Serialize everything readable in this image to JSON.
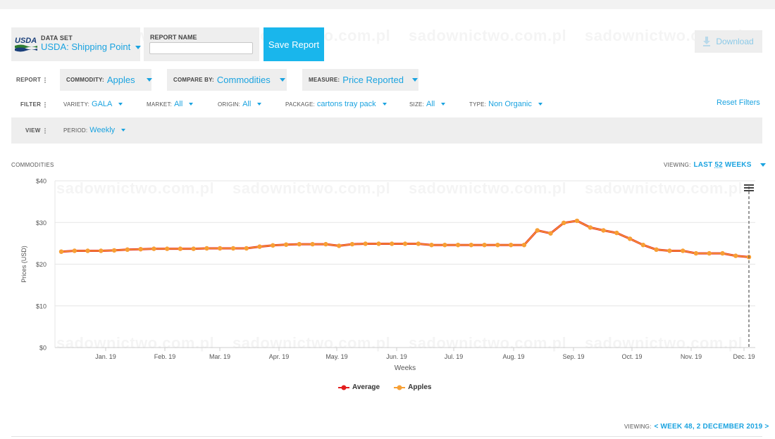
{
  "dataset": {
    "logo_text": "USDA",
    "label": "DATA SET",
    "value": "USDA: Shipping Point"
  },
  "report_name": {
    "label": "REPORT NAME",
    "value": "",
    "placeholder": ""
  },
  "save_button": "Save Report",
  "download_button": "Download",
  "report_row": {
    "label": "REPORT",
    "commodity": {
      "label": "COMMODITY:",
      "value": "Apples"
    },
    "compare_by": {
      "label": "COMPARE BY:",
      "value": "Commodities"
    },
    "measure": {
      "label": "MEASURE:",
      "value": "Price Reported"
    }
  },
  "filter_row": {
    "label": "FILTER",
    "variety": {
      "label": "VARIETY:",
      "value": "GALA"
    },
    "market": {
      "label": "MARKET:",
      "value": "All"
    },
    "origin": {
      "label": "ORIGIN:",
      "value": "All"
    },
    "package": {
      "label": "PACKAGE:",
      "value": "cartons tray pack"
    },
    "size": {
      "label": "SIZE:",
      "value": "All"
    },
    "type": {
      "label": "TYPE:",
      "value": "Non Organic"
    },
    "reset": "Reset Filters"
  },
  "view_row": {
    "label": "VIEW",
    "period": {
      "label": "PERIOD:",
      "value": "Weekly"
    }
  },
  "chart_header": {
    "title": "COMMODITIES",
    "viewing_label": "VIEWING:",
    "viewing_pre": "LAST",
    "viewing_num": "52",
    "viewing_post": "WEEKS"
  },
  "chart_footer": {
    "viewing_label": "VIEWING:",
    "viewing_value": "< WEEK 48, 2 DECEMBER 2019 >"
  },
  "colors": {
    "accent": "#1aa3e0",
    "save_button": "#19b6ec",
    "average_series": "#e31e1e",
    "apples_series": "#f7a035"
  },
  "chart_data": {
    "type": "line",
    "title": "",
    "xlabel": "Weeks",
    "ylabel": "Prices (USD)",
    "ylim": [
      0,
      40
    ],
    "yticks": [
      "$0",
      "$10",
      "$20",
      "$30",
      "$40"
    ],
    "xticks": [
      "Jan. 19",
      "Feb. 19",
      "Mar. 19",
      "Apr. 19",
      "May. 19",
      "Jun. 19",
      "Jul. 19",
      "Aug. 19",
      "Sep. 19",
      "Oct. 19",
      "Nov. 19",
      "Dec. 19"
    ],
    "grid": true,
    "legend": "bottom-center",
    "series": [
      {
        "name": "Average",
        "values": [
          23.0,
          23.2,
          23.2,
          23.2,
          23.3,
          23.5,
          23.6,
          23.7,
          23.7,
          23.7,
          23.7,
          23.8,
          23.8,
          23.8,
          23.8,
          24.2,
          24.5,
          24.7,
          24.8,
          24.8,
          24.8,
          24.4,
          24.8,
          24.9,
          24.9,
          24.9,
          24.9,
          24.9,
          24.6,
          24.6,
          24.6,
          24.6,
          24.6,
          24.6,
          24.6,
          24.6,
          28.1,
          27.4,
          29.9,
          30.4,
          28.8,
          28.1,
          27.5,
          26.1,
          24.6,
          23.5,
          23.2,
          23.2,
          22.6,
          22.6,
          22.6,
          22.0,
          21.7
        ]
      },
      {
        "name": "Apples",
        "values": [
          23.0,
          23.2,
          23.2,
          23.2,
          23.3,
          23.5,
          23.6,
          23.7,
          23.7,
          23.7,
          23.7,
          23.8,
          23.8,
          23.8,
          23.8,
          24.2,
          24.5,
          24.7,
          24.8,
          24.8,
          24.8,
          24.4,
          24.8,
          24.9,
          24.9,
          24.9,
          24.9,
          24.9,
          24.6,
          24.6,
          24.6,
          24.6,
          24.6,
          24.6,
          24.6,
          24.6,
          28.1,
          27.4,
          29.9,
          30.4,
          28.8,
          28.1,
          27.5,
          26.1,
          24.6,
          23.5,
          23.2,
          23.2,
          22.6,
          22.6,
          22.6,
          22.0,
          21.7
        ]
      }
    ]
  },
  "watermark_text": "sadownictwo.com.pl"
}
